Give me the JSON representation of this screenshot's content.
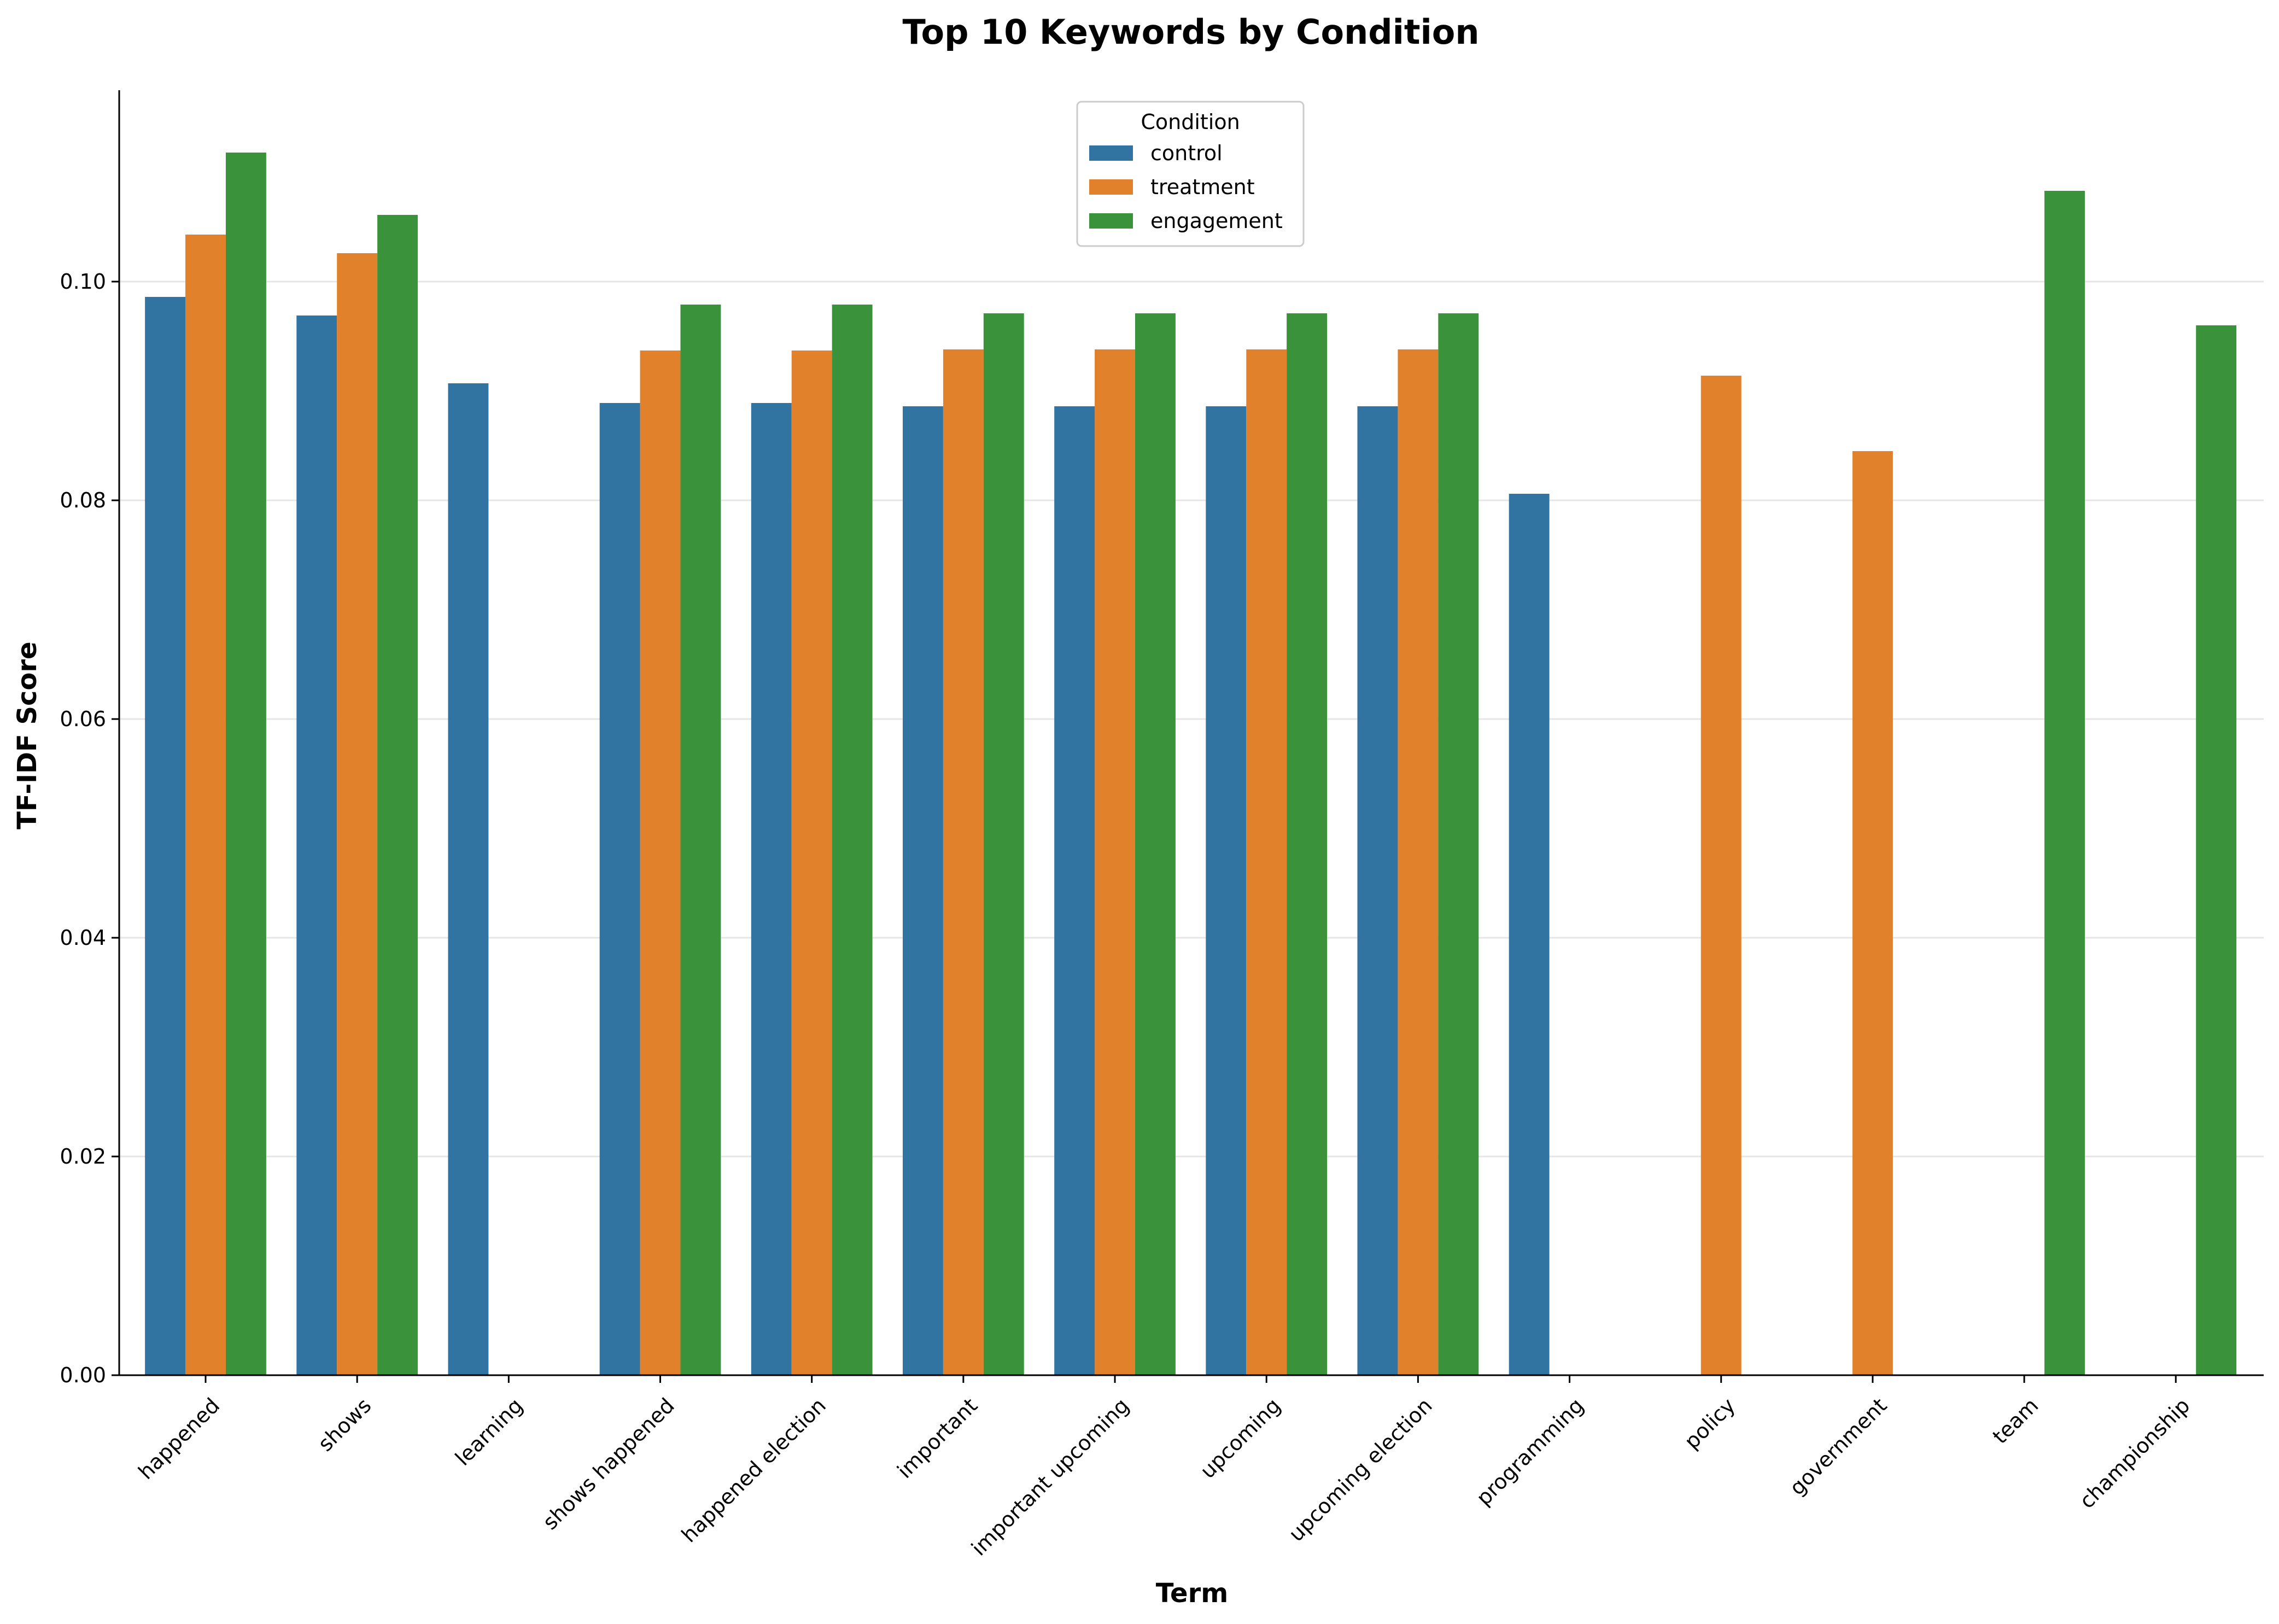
{
  "chart_data": {
    "type": "bar",
    "title": "Top 10 Keywords by Condition",
    "xlabel": "Term",
    "ylabel": "TF-IDF Score",
    "ylim": [
      0,
      0.1175
    ],
    "yticks": [
      0.0,
      0.02,
      0.04,
      0.06,
      0.08,
      0.1
    ],
    "ytick_labels": [
      "0.00",
      "0.02",
      "0.04",
      "0.06",
      "0.08",
      "0.10"
    ],
    "grid": true,
    "legend_title": "Condition",
    "legend_position": "top-center",
    "categories": [
      "happened",
      "shows",
      "learning",
      "shows happened",
      "happened election",
      "important",
      "important upcoming",
      "upcoming",
      "upcoming election",
      "programming",
      "policy",
      "government",
      "team",
      "championship"
    ],
    "series": [
      {
        "name": "control",
        "color": "#3274a1",
        "values": [
          0.0986,
          0.0969,
          0.0907,
          0.0889,
          0.0889,
          0.0886,
          0.0886,
          0.0886,
          0.0886,
          0.0806,
          null,
          null,
          null,
          null
        ]
      },
      {
        "name": "treatment",
        "color": "#e1812c",
        "values": [
          0.1043,
          0.1026,
          null,
          0.0937,
          0.0937,
          0.0938,
          0.0938,
          0.0938,
          0.0938,
          null,
          0.0914,
          0.0845,
          null,
          null
        ]
      },
      {
        "name": "engagement",
        "color": "#3a923a",
        "values": [
          0.1118,
          0.1061,
          null,
          0.0979,
          0.0979,
          0.0971,
          0.0971,
          0.0971,
          0.0971,
          null,
          null,
          null,
          0.1083,
          0.096
        ]
      }
    ]
  }
}
